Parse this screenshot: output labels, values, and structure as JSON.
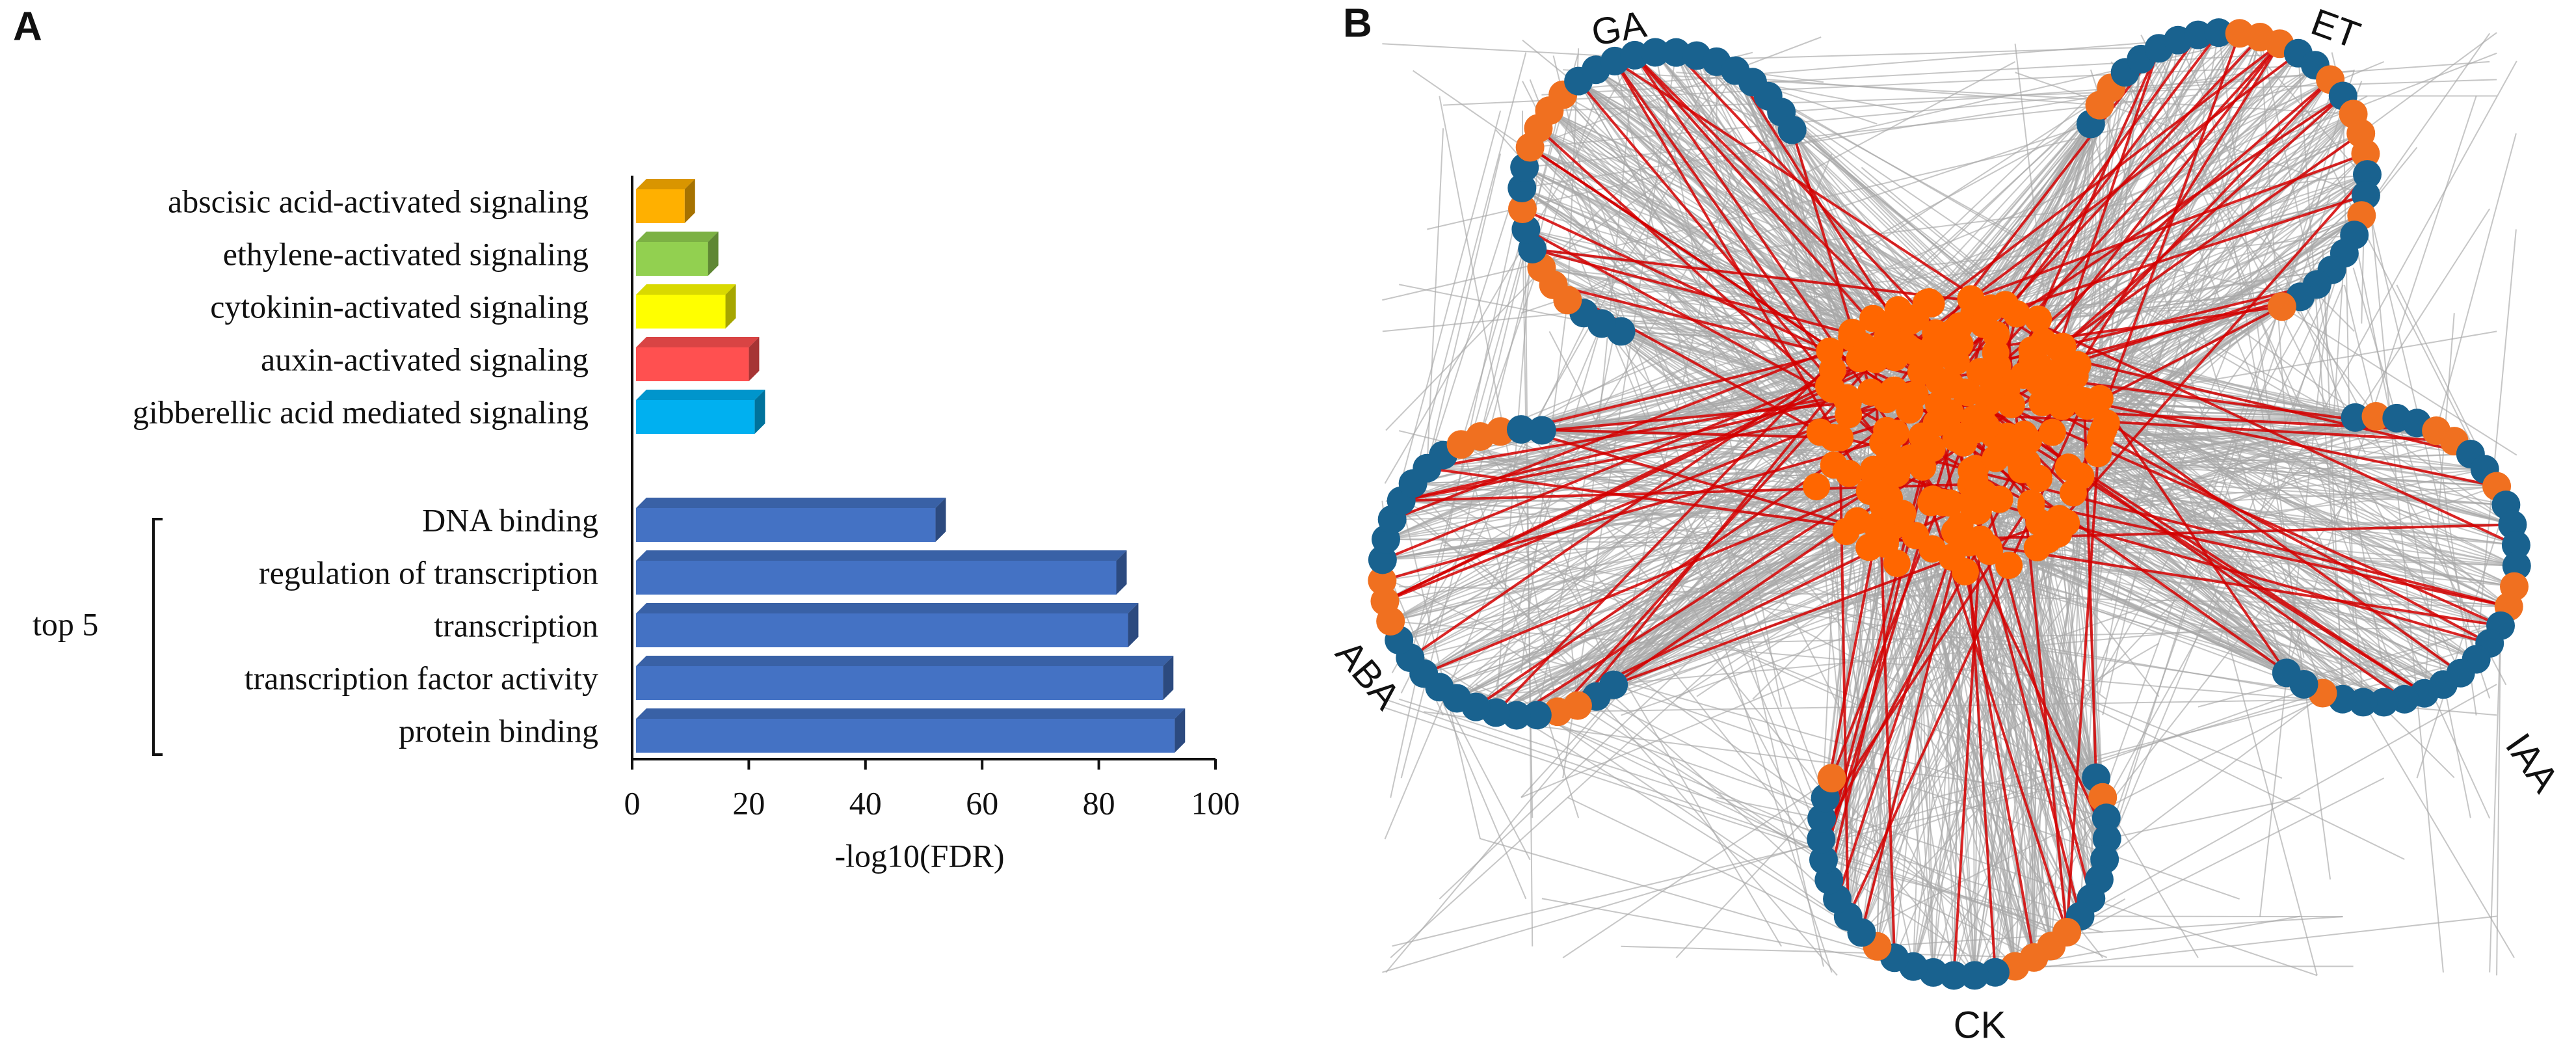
{
  "chart_data": {
    "type": "bar3d",
    "orientation": "horizontal",
    "panel_label": "A",
    "categories": [
      "abscisic acid-activated signaling",
      "ethylene-activated signaling",
      "cytokinin-activated signaling",
      "auxin-activated signaling",
      "gibberellic acid mediated signaling",
      "DNA binding",
      "regulation of transcription",
      "transcription",
      "transcription factor activity",
      "protein binding"
    ],
    "values": [
      9,
      13,
      16,
      20,
      21,
      52,
      83,
      85,
      91,
      93
    ],
    "colors": [
      "#ffb000",
      "#92d050",
      "#ffff00",
      "#ff5050",
      "#00b0f0",
      "#4472c4",
      "#4472c4",
      "#4472c4",
      "#4472c4",
      "#4472c4"
    ],
    "xlabel": "-log10(FDR)",
    "xlim": [
      0,
      100
    ],
    "xticks": [
      0,
      20,
      40,
      60,
      80,
      100
    ],
    "annotation": "top 5"
  },
  "network": {
    "panel_label": "B",
    "groups": [
      "GA",
      "ET",
      "IAA",
      "CK",
      "ABA"
    ]
  }
}
